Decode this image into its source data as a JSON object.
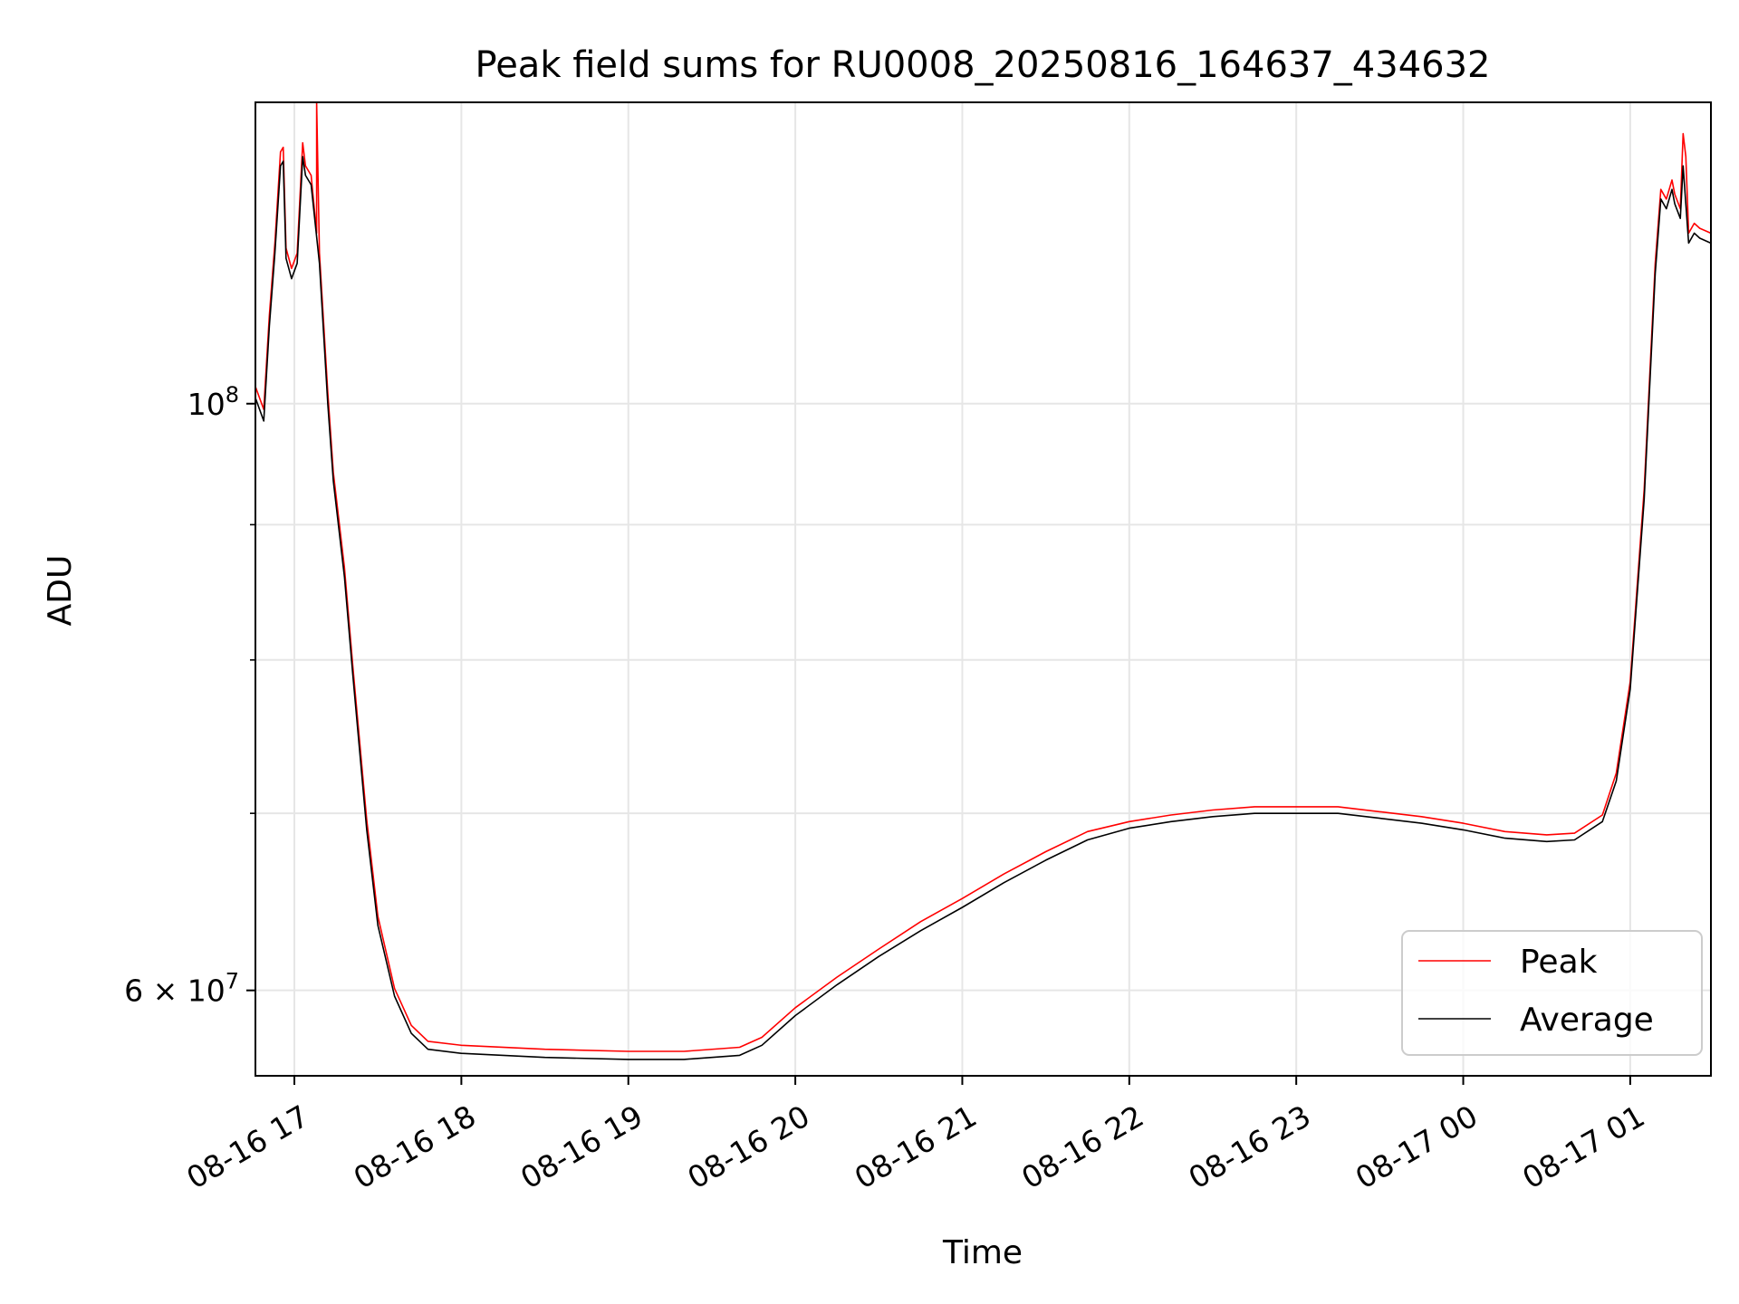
{
  "chart_data": {
    "type": "line",
    "title": "Peak field sums for RU0008_20250816_164637_434632",
    "xlabel": "Time",
    "ylabel": "ADU",
    "y_scale": "log",
    "grid": true,
    "legend_position": "lower right",
    "xlim": [
      "2025-08-16 16:46",
      "2025-08-17 01:29"
    ],
    "ylim": [
      55700000,
      130000000
    ],
    "x_ticks": [
      {
        "t": "2025-08-16 17:00",
        "label": "08-16 17"
      },
      {
        "t": "2025-08-16 18:00",
        "label": "08-16 18"
      },
      {
        "t": "2025-08-16 19:00",
        "label": "08-16 19"
      },
      {
        "t": "2025-08-16 20:00",
        "label": "08-16 20"
      },
      {
        "t": "2025-08-16 21:00",
        "label": "08-16 21"
      },
      {
        "t": "2025-08-16 22:00",
        "label": "08-16 22"
      },
      {
        "t": "2025-08-16 23:00",
        "label": "08-16 23"
      },
      {
        "t": "2025-08-17 00:00",
        "label": "08-17 00"
      },
      {
        "t": "2025-08-17 01:00",
        "label": "08-17 01"
      }
    ],
    "y_ticks_major": [
      {
        "value": 100000000,
        "base": "10",
        "exp": "8",
        "mantissa": ""
      },
      {
        "value": 60000000,
        "base": "10",
        "exp": "7",
        "mantissa": "6 × "
      }
    ],
    "y_ticks_minor": [
      70000000,
      80000000,
      90000000
    ],
    "series": [
      {
        "name": "Average",
        "color": "#000000",
        "points": [
          [
            "2025-08-16 16:46",
            100500000
          ],
          [
            "2025-08-16 16:49",
            98500000
          ],
          [
            "2025-08-16 16:51",
            107000000
          ],
          [
            "2025-08-16 16:53",
            114000000
          ],
          [
            "2025-08-16 16:55",
            123000000
          ],
          [
            "2025-08-16 16:56",
            123500000
          ],
          [
            "2025-08-16 16:57",
            113500000
          ],
          [
            "2025-08-16 16:59",
            111500000
          ],
          [
            "2025-08-16 17:01",
            113000000
          ],
          [
            "2025-08-16 17:03",
            124000000
          ],
          [
            "2025-08-16 17:04",
            122000000
          ],
          [
            "2025-08-16 17:06",
            121000000
          ],
          [
            "2025-08-16 17:09",
            113000000
          ],
          [
            "2025-08-16 17:12",
            100000000
          ],
          [
            "2025-08-16 17:14",
            93500000
          ],
          [
            "2025-08-16 17:18",
            86000000
          ],
          [
            "2025-08-16 17:21",
            79000000
          ],
          [
            "2025-08-16 17:26",
            69000000
          ],
          [
            "2025-08-16 17:30",
            63500000
          ],
          [
            "2025-08-16 17:36",
            59700000
          ],
          [
            "2025-08-16 17:42",
            57800000
          ],
          [
            "2025-08-16 17:48",
            57000000
          ],
          [
            "2025-08-16 18:00",
            56800000
          ],
          [
            "2025-08-16 18:30",
            56600000
          ],
          [
            "2025-08-16 19:00",
            56500000
          ],
          [
            "2025-08-16 19:20",
            56500000
          ],
          [
            "2025-08-16 19:40",
            56700000
          ],
          [
            "2025-08-16 19:48",
            57200000
          ],
          [
            "2025-08-16 20:00",
            58700000
          ],
          [
            "2025-08-16 20:15",
            60300000
          ],
          [
            "2025-08-16 20:30",
            61800000
          ],
          [
            "2025-08-16 20:45",
            63200000
          ],
          [
            "2025-08-16 21:00",
            64500000
          ],
          [
            "2025-08-16 21:15",
            65900000
          ],
          [
            "2025-08-16 21:30",
            67200000
          ],
          [
            "2025-08-16 21:45",
            68400000
          ],
          [
            "2025-08-16 22:00",
            69100000
          ],
          [
            "2025-08-16 22:15",
            69500000
          ],
          [
            "2025-08-16 22:30",
            69800000
          ],
          [
            "2025-08-16 22:45",
            70000000
          ],
          [
            "2025-08-16 23:00",
            70000000
          ],
          [
            "2025-08-16 23:15",
            70000000
          ],
          [
            "2025-08-16 23:30",
            69700000
          ],
          [
            "2025-08-16 23:45",
            69400000
          ],
          [
            "2025-08-17 00:00",
            69000000
          ],
          [
            "2025-08-17 00:15",
            68500000
          ],
          [
            "2025-08-17 00:30",
            68300000
          ],
          [
            "2025-08-17 00:40",
            68400000
          ],
          [
            "2025-08-17 00:50",
            69500000
          ],
          [
            "2025-08-17 00:55",
            72000000
          ],
          [
            "2025-08-17 01:00",
            78000000
          ],
          [
            "2025-08-17 01:05",
            92000000
          ],
          [
            "2025-08-17 01:09",
            112000000
          ],
          [
            "2025-08-17 01:11",
            119500000
          ],
          [
            "2025-08-17 01:13",
            118500000
          ],
          [
            "2025-08-17 01:15",
            120500000
          ],
          [
            "2025-08-17 01:16",
            119000000
          ],
          [
            "2025-08-17 01:18",
            117500000
          ],
          [
            "2025-08-17 01:19",
            123000000
          ],
          [
            "2025-08-17 01:21",
            115000000
          ],
          [
            "2025-08-17 01:23",
            116000000
          ],
          [
            "2025-08-17 01:25",
            115500000
          ],
          [
            "2025-08-17 01:29",
            115000000
          ]
        ]
      },
      {
        "name": "Peak",
        "color": "#ff0000",
        "points": [
          [
            "2025-08-16 16:46",
            101500000
          ],
          [
            "2025-08-16 16:49",
            99500000
          ],
          [
            "2025-08-16 16:51",
            108000000
          ],
          [
            "2025-08-16 16:53",
            115000000
          ],
          [
            "2025-08-16 16:55",
            124500000
          ],
          [
            "2025-08-16 16:56",
            125000000
          ],
          [
            "2025-08-16 16:57",
            114500000
          ],
          [
            "2025-08-16 16:59",
            112500000
          ],
          [
            "2025-08-16 17:01",
            114000000
          ],
          [
            "2025-08-16 17:03",
            125500000
          ],
          [
            "2025-08-16 17:04",
            123000000
          ],
          [
            "2025-08-16 17:06",
            122000000
          ],
          [
            "2025-08-16 17:08",
            116000000
          ],
          [
            "2025-08-16 17:08",
            130000000
          ],
          [
            "2025-08-16 17:09",
            114000000
          ],
          [
            "2025-08-16 17:12",
            101000000
          ],
          [
            "2025-08-16 17:14",
            94200000
          ],
          [
            "2025-08-16 17:18",
            86700000
          ],
          [
            "2025-08-16 17:21",
            79600000
          ],
          [
            "2025-08-16 17:26",
            69600000
          ],
          [
            "2025-08-16 17:30",
            64000000
          ],
          [
            "2025-08-16 17:36",
            60100000
          ],
          [
            "2025-08-16 17:42",
            58200000
          ],
          [
            "2025-08-16 17:48",
            57400000
          ],
          [
            "2025-08-16 18:00",
            57200000
          ],
          [
            "2025-08-16 18:30",
            57000000
          ],
          [
            "2025-08-16 19:00",
            56900000
          ],
          [
            "2025-08-16 19:20",
            56900000
          ],
          [
            "2025-08-16 19:40",
            57100000
          ],
          [
            "2025-08-16 19:48",
            57600000
          ],
          [
            "2025-08-16 20:00",
            59100000
          ],
          [
            "2025-08-16 20:15",
            60700000
          ],
          [
            "2025-08-16 20:30",
            62200000
          ],
          [
            "2025-08-16 20:45",
            63700000
          ],
          [
            "2025-08-16 21:00",
            65000000
          ],
          [
            "2025-08-16 21:15",
            66400000
          ],
          [
            "2025-08-16 21:30",
            67700000
          ],
          [
            "2025-08-16 21:45",
            68900000
          ],
          [
            "2025-08-16 22:00",
            69500000
          ],
          [
            "2025-08-16 22:15",
            69900000
          ],
          [
            "2025-08-16 22:30",
            70200000
          ],
          [
            "2025-08-16 22:45",
            70400000
          ],
          [
            "2025-08-16 23:00",
            70400000
          ],
          [
            "2025-08-16 23:15",
            70400000
          ],
          [
            "2025-08-16 23:30",
            70100000
          ],
          [
            "2025-08-16 23:45",
            69800000
          ],
          [
            "2025-08-17 00:00",
            69400000
          ],
          [
            "2025-08-17 00:15",
            68900000
          ],
          [
            "2025-08-17 00:30",
            68700000
          ],
          [
            "2025-08-17 00:40",
            68800000
          ],
          [
            "2025-08-17 00:50",
            69900000
          ],
          [
            "2025-08-17 00:55",
            72500000
          ],
          [
            "2025-08-17 01:00",
            78500000
          ],
          [
            "2025-08-17 01:05",
            92800000
          ],
          [
            "2025-08-17 01:09",
            113000000
          ],
          [
            "2025-08-17 01:11",
            120500000
          ],
          [
            "2025-08-17 01:13",
            119500000
          ],
          [
            "2025-08-17 01:15",
            121500000
          ],
          [
            "2025-08-17 01:16",
            120000000
          ],
          [
            "2025-08-17 01:18",
            118500000
          ],
          [
            "2025-08-17 01:19",
            126500000
          ],
          [
            "2025-08-17 01:20",
            124000000
          ],
          [
            "2025-08-17 01:21",
            116000000
          ],
          [
            "2025-08-17 01:23",
            117000000
          ],
          [
            "2025-08-17 01:25",
            116500000
          ],
          [
            "2025-08-17 01:29",
            116000000
          ]
        ]
      }
    ],
    "legend": [
      {
        "label": "Peak",
        "color": "#ff0000"
      },
      {
        "label": "Average",
        "color": "#000000"
      }
    ]
  }
}
